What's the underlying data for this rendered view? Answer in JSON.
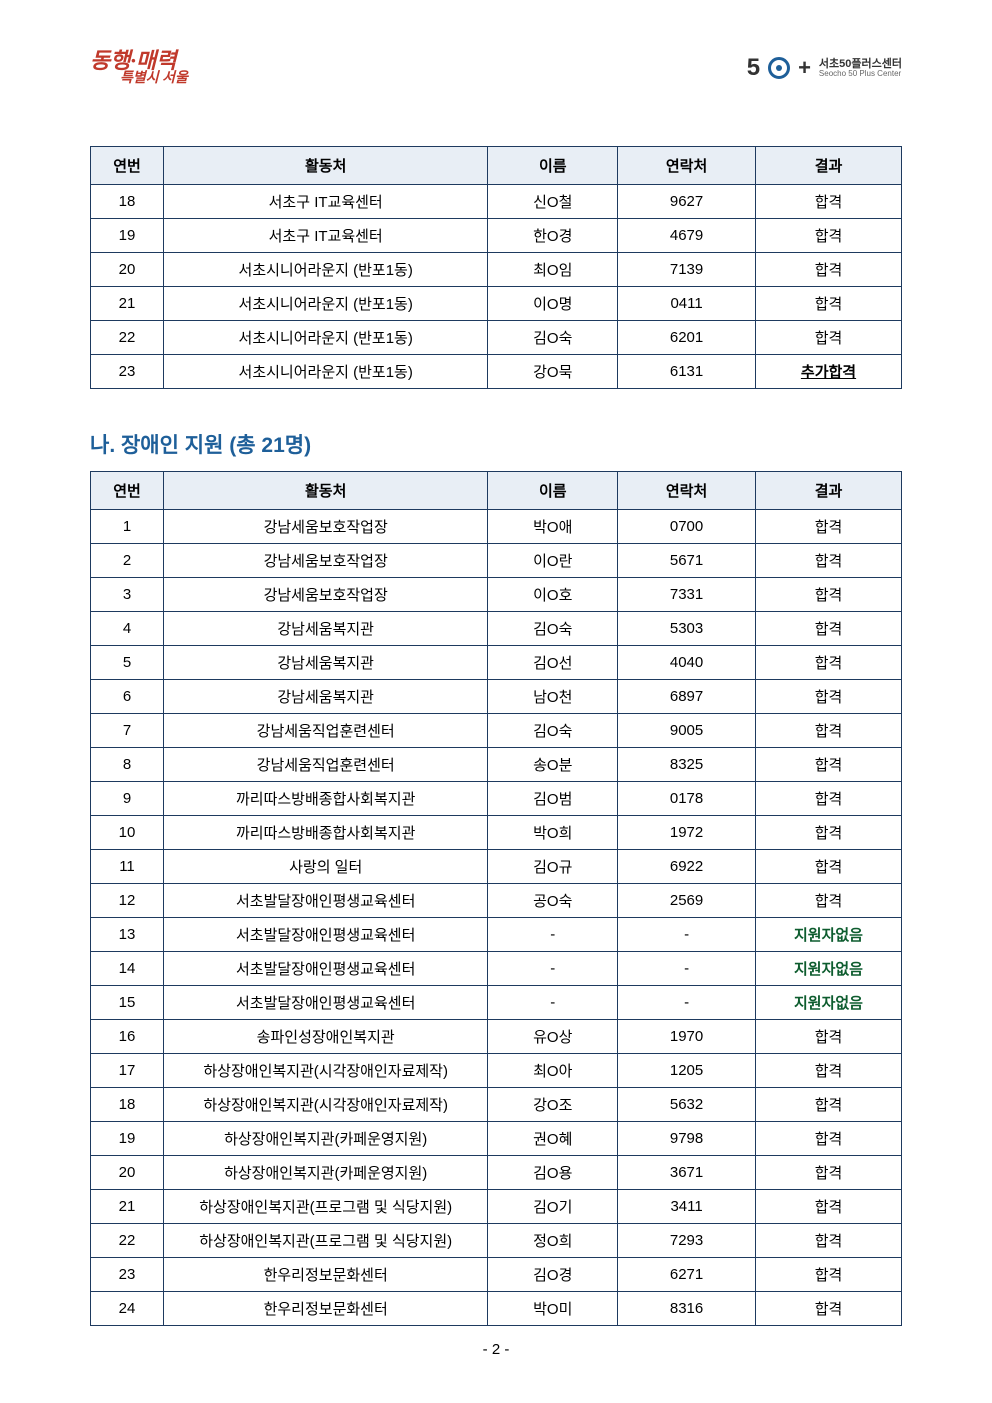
{
  "header": {
    "logo_left_main": "동행·매력",
    "logo_left_sub": "특별시 서울",
    "logo_right_50": "5",
    "logo_right_plus": "+",
    "logo_right_kr": "서초50플러스센터",
    "logo_right_en": "Seocho 50 Plus Center"
  },
  "table1": {
    "headers": [
      "연번",
      "활동처",
      "이름",
      "연락처",
      "결과"
    ],
    "rows": [
      {
        "num": "18",
        "place": "서초구 IT교육센터",
        "name": "신O철",
        "contact": "9627",
        "result": "합격",
        "cls": ""
      },
      {
        "num": "19",
        "place": "서초구 IT교육센터",
        "name": "한O경",
        "contact": "4679",
        "result": "합격",
        "cls": ""
      },
      {
        "num": "20",
        "place": "서초시니어라운지 (반포1동)",
        "name": "최O임",
        "contact": "7139",
        "result": "합격",
        "cls": ""
      },
      {
        "num": "21",
        "place": "서초시니어라운지 (반포1동)",
        "name": "이O명",
        "contact": "0411",
        "result": "합격",
        "cls": ""
      },
      {
        "num": "22",
        "place": "서초시니어라운지 (반포1동)",
        "name": "김O숙",
        "contact": "6201",
        "result": "합격",
        "cls": ""
      },
      {
        "num": "23",
        "place": "서초시니어라운지 (반포1동)",
        "name": "강O묵",
        "contact": "6131",
        "result": "추가합격",
        "cls": "result-add"
      }
    ]
  },
  "section_title": "나. 장애인 지원 (총 21명)",
  "table2": {
    "headers": [
      "연번",
      "활동처",
      "이름",
      "연락처",
      "결과"
    ],
    "rows": [
      {
        "num": "1",
        "place": "강남세움보호작업장",
        "name": "박O애",
        "contact": "0700",
        "result": "합격",
        "cls": ""
      },
      {
        "num": "2",
        "place": "강남세움보호작업장",
        "name": "이O란",
        "contact": "5671",
        "result": "합격",
        "cls": ""
      },
      {
        "num": "3",
        "place": "강남세움보호작업장",
        "name": "이O호",
        "contact": "7331",
        "result": "합격",
        "cls": ""
      },
      {
        "num": "4",
        "place": "강남세움복지관",
        "name": "김O숙",
        "contact": "5303",
        "result": "합격",
        "cls": ""
      },
      {
        "num": "5",
        "place": "강남세움복지관",
        "name": "김O선",
        "contact": "4040",
        "result": "합격",
        "cls": ""
      },
      {
        "num": "6",
        "place": "강남세움복지관",
        "name": "남O천",
        "contact": "6897",
        "result": "합격",
        "cls": ""
      },
      {
        "num": "7",
        "place": "강남세움직업훈련센터",
        "name": "김O숙",
        "contact": "9005",
        "result": "합격",
        "cls": ""
      },
      {
        "num": "8",
        "place": "강남세움직업훈련센터",
        "name": "송O분",
        "contact": "8325",
        "result": "합격",
        "cls": ""
      },
      {
        "num": "9",
        "place": "까리따스방배종합사회복지관",
        "name": "김O범",
        "contact": "0178",
        "result": "합격",
        "cls": ""
      },
      {
        "num": "10",
        "place": "까리따스방배종합사회복지관",
        "name": "박O희",
        "contact": "1972",
        "result": "합격",
        "cls": ""
      },
      {
        "num": "11",
        "place": "사랑의 일터",
        "name": "김O규",
        "contact": "6922",
        "result": "합격",
        "cls": ""
      },
      {
        "num": "12",
        "place": "서초발달장애인평생교육센터",
        "name": "공O숙",
        "contact": "2569",
        "result": "합격",
        "cls": ""
      },
      {
        "num": "13",
        "place": "서초발달장애인평생교육센터",
        "name": "-",
        "contact": "-",
        "result": "지원자없음",
        "cls": "result-none"
      },
      {
        "num": "14",
        "place": "서초발달장애인평생교육센터",
        "name": "-",
        "contact": "-",
        "result": "지원자없음",
        "cls": "result-none"
      },
      {
        "num": "15",
        "place": "서초발달장애인평생교육센터",
        "name": "-",
        "contact": "-",
        "result": "지원자없음",
        "cls": "result-none"
      },
      {
        "num": "16",
        "place": "송파인성장애인복지관",
        "name": "유O상",
        "contact": "1970",
        "result": "합격",
        "cls": ""
      },
      {
        "num": "17",
        "place": "하상장애인복지관(시각장애인자료제작)",
        "name": "최O아",
        "contact": "1205",
        "result": "합격",
        "cls": ""
      },
      {
        "num": "18",
        "place": "하상장애인복지관(시각장애인자료제작)",
        "name": "강O조",
        "contact": "5632",
        "result": "합격",
        "cls": ""
      },
      {
        "num": "19",
        "place": "하상장애인복지관(카페운영지원)",
        "name": "권O혜",
        "contact": "9798",
        "result": "합격",
        "cls": ""
      },
      {
        "num": "20",
        "place": "하상장애인복지관(카페운영지원)",
        "name": "김O용",
        "contact": "3671",
        "result": "합격",
        "cls": ""
      },
      {
        "num": "21",
        "place": "하상장애인복지관(프로그램 및 식당지원)",
        "name": "김O기",
        "contact": "3411",
        "result": "합격",
        "cls": ""
      },
      {
        "num": "22",
        "place": "하상장애인복지관(프로그램 및 식당지원)",
        "name": "정O희",
        "contact": "7293",
        "result": "합격",
        "cls": ""
      },
      {
        "num": "23",
        "place": "한우리정보문화센터",
        "name": "김O경",
        "contact": "6271",
        "result": "합격",
        "cls": ""
      },
      {
        "num": "24",
        "place": "한우리정보문화센터",
        "name": "박O미",
        "contact": "8316",
        "result": "합격",
        "cls": ""
      }
    ]
  },
  "page_number": "- 2 -",
  "colors": {
    "header_bg": "#e8eef5",
    "border": "#1e3a5f",
    "title": "#1e5f99",
    "result_none": "#0d5c2e",
    "logo_red": "#c0392b"
  }
}
